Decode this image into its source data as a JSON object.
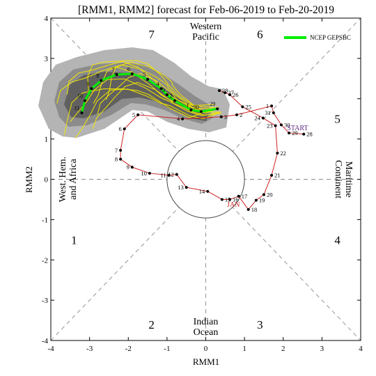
{
  "chart_data": {
    "type": "line",
    "title": "[RMM1, RMM2] forecast for Feb-06-2019 to Feb-20-2019",
    "xlabel": "RMM1",
    "ylabel": "RMM2",
    "xlim": [
      -4,
      4
    ],
    "ylim": [
      -4,
      4
    ],
    "xticks": [
      -4,
      -3,
      -2,
      -1,
      0,
      1,
      2,
      3,
      4
    ],
    "yticks": [
      -4,
      -3,
      -2,
      -1,
      0,
      1,
      2,
      3,
      4
    ],
    "grid": false,
    "legend_position": "top-right",
    "legend_entries": [
      "NCEP GEPSBC"
    ],
    "phase_numbers": [
      {
        "label": "1",
        "x": -3.4,
        "y": -1.5
      },
      {
        "label": "2",
        "x": -1.4,
        "y": -3.6
      },
      {
        "label": "3",
        "x": 1.4,
        "y": -3.6
      },
      {
        "label": "4",
        "x": 3.4,
        "y": -1.5
      },
      {
        "label": "5",
        "x": 3.4,
        "y": 1.5
      },
      {
        "label": "6",
        "x": 1.4,
        "y": 3.6
      },
      {
        "label": "7",
        "x": -1.4,
        "y": 3.6
      },
      {
        "label": "8",
        "x": -3.4,
        "y": 1.5
      }
    ],
    "region_labels": {
      "top": [
        "Western",
        "Pacific"
      ],
      "bottom": [
        "Indian",
        "Ocean"
      ],
      "left": [
        "West. Hem.",
        "and Africa"
      ],
      "right": [
        "Maritime",
        "Continent"
      ]
    },
    "annotations": [
      {
        "text": "START",
        "x": 2.1,
        "y": 1.22,
        "color": "#5b2a86"
      },
      {
        "text": "JAN",
        "x": 0.55,
        "y": -0.68,
        "color": "#cc2222"
      }
    ],
    "observed": {
      "color": "#cc2222",
      "points": [
        {
          "label": "28",
          "x": 2.53,
          "y": 1.12
        },
        {
          "label": "29",
          "x": 2.15,
          "y": 1.15
        },
        {
          "label": "30",
          "x": 1.95,
          "y": 1.35
        },
        {
          "label": "31",
          "x": 1.75,
          "y": 1.65
        },
        {
          "label": "1",
          "x": 1.7,
          "y": 1.82
        },
        {
          "label": "2",
          "x": 0.8,
          "y": 1.6
        },
        {
          "label": "3",
          "x": 0.4,
          "y": 1.55
        },
        {
          "label": "4",
          "x": -0.6,
          "y": 1.5
        },
        {
          "label": "5",
          "x": -1.75,
          "y": 1.6
        },
        {
          "label": "6",
          "x": -2.1,
          "y": 1.25
        },
        {
          "label": "7",
          "x": -2.2,
          "y": 0.72
        },
        {
          "label": "8",
          "x": -2.2,
          "y": 0.5
        },
        {
          "label": "9",
          "x": -1.9,
          "y": 0.3
        },
        {
          "label": "10",
          "x": -1.45,
          "y": 0.15
        },
        {
          "label": "11",
          "x": -0.95,
          "y": 0.1
        },
        {
          "label": "12",
          "x": -0.75,
          "y": 0.12
        },
        {
          "label": "13",
          "x": -0.5,
          "y": -0.2
        },
        {
          "label": "14",
          "x": 0.05,
          "y": -0.3
        },
        {
          "label": "15",
          "x": 0.42,
          "y": -0.5
        },
        {
          "label": "16",
          "x": 0.62,
          "y": -0.5
        },
        {
          "label": "17",
          "x": 0.85,
          "y": -0.42
        },
        {
          "label": "18",
          "x": 1.1,
          "y": -0.75
        },
        {
          "label": "19",
          "x": 1.3,
          "y": -0.52
        },
        {
          "label": "20",
          "x": 1.5,
          "y": -0.38
        },
        {
          "label": "21",
          "x": 1.7,
          "y": 0.1
        },
        {
          "label": "22",
          "x": 1.85,
          "y": 0.65
        },
        {
          "label": "23",
          "x": 1.8,
          "y": 1.33
        },
        {
          "label": "24",
          "x": 1.48,
          "y": 1.52
        },
        {
          "label": "25",
          "x": 0.95,
          "y": 1.8
        },
        {
          "label": "26",
          "x": 0.62,
          "y": 2.1
        },
        {
          "label": "27",
          "x": 0.5,
          "y": 2.15
        },
        {
          "label": "28",
          "x": 0.35,
          "y": 2.2
        }
      ]
    },
    "forecast": {
      "name": "NCEP GEPSBC",
      "color": "#00ee00",
      "points": [
        {
          "label": "29",
          "x": 0.3,
          "y": 1.75
        },
        {
          "label": "30",
          "x": -0.12,
          "y": 1.68
        },
        {
          "label": "1",
          "x": -0.38,
          "y": 1.72
        },
        {
          "label": "2",
          "x": -0.8,
          "y": 1.95
        },
        {
          "label": "3",
          "x": -1.0,
          "y": 2.1
        },
        {
          "label": "4",
          "x": -1.15,
          "y": 2.25
        },
        {
          "label": "5",
          "x": -1.5,
          "y": 2.48
        },
        {
          "label": "6",
          "x": -1.9,
          "y": 2.62
        },
        {
          "label": "7",
          "x": -2.3,
          "y": 2.6
        },
        {
          "label": "8",
          "x": -2.7,
          "y": 2.45
        },
        {
          "label": "9",
          "x": -2.95,
          "y": 2.25
        },
        {
          "label": "10",
          "x": -3.12,
          "y": 1.95
        },
        {
          "label": "11",
          "x": -3.2,
          "y": 1.65
        }
      ]
    }
  }
}
